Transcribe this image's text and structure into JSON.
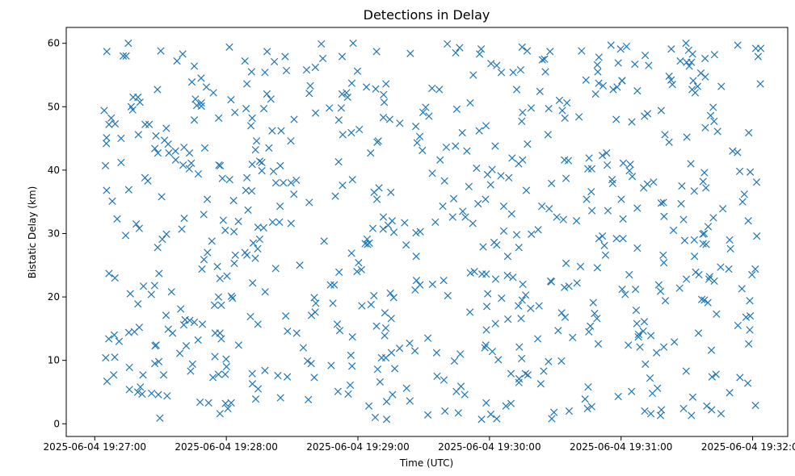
{
  "chart_data": {
    "type": "scatter",
    "title": "Detections in Delay",
    "xlabel": "Time (UTC)",
    "ylabel": "Bistatic Delay (km)",
    "xlim": [
      "2025-06-04 19:26:47",
      "2025-06-04 19:32:16"
    ],
    "ylim": [
      -2.0,
      62.5
    ],
    "x_ticks": [
      "2025-06-04 19:27:00",
      "2025-06-04 19:28:00",
      "2025-06-04 19:29:00",
      "2025-06-04 19:30:00",
      "2025-06-04 19:31:00",
      "2025-06-04 19:32:00"
    ],
    "y_ticks": [
      "0",
      "10",
      "20",
      "30",
      "40",
      "50",
      "60"
    ],
    "marker": "x",
    "color": "#1f77b4",
    "grid": false,
    "points": {
      "x": [],
      "y": []
    }
  }
}
